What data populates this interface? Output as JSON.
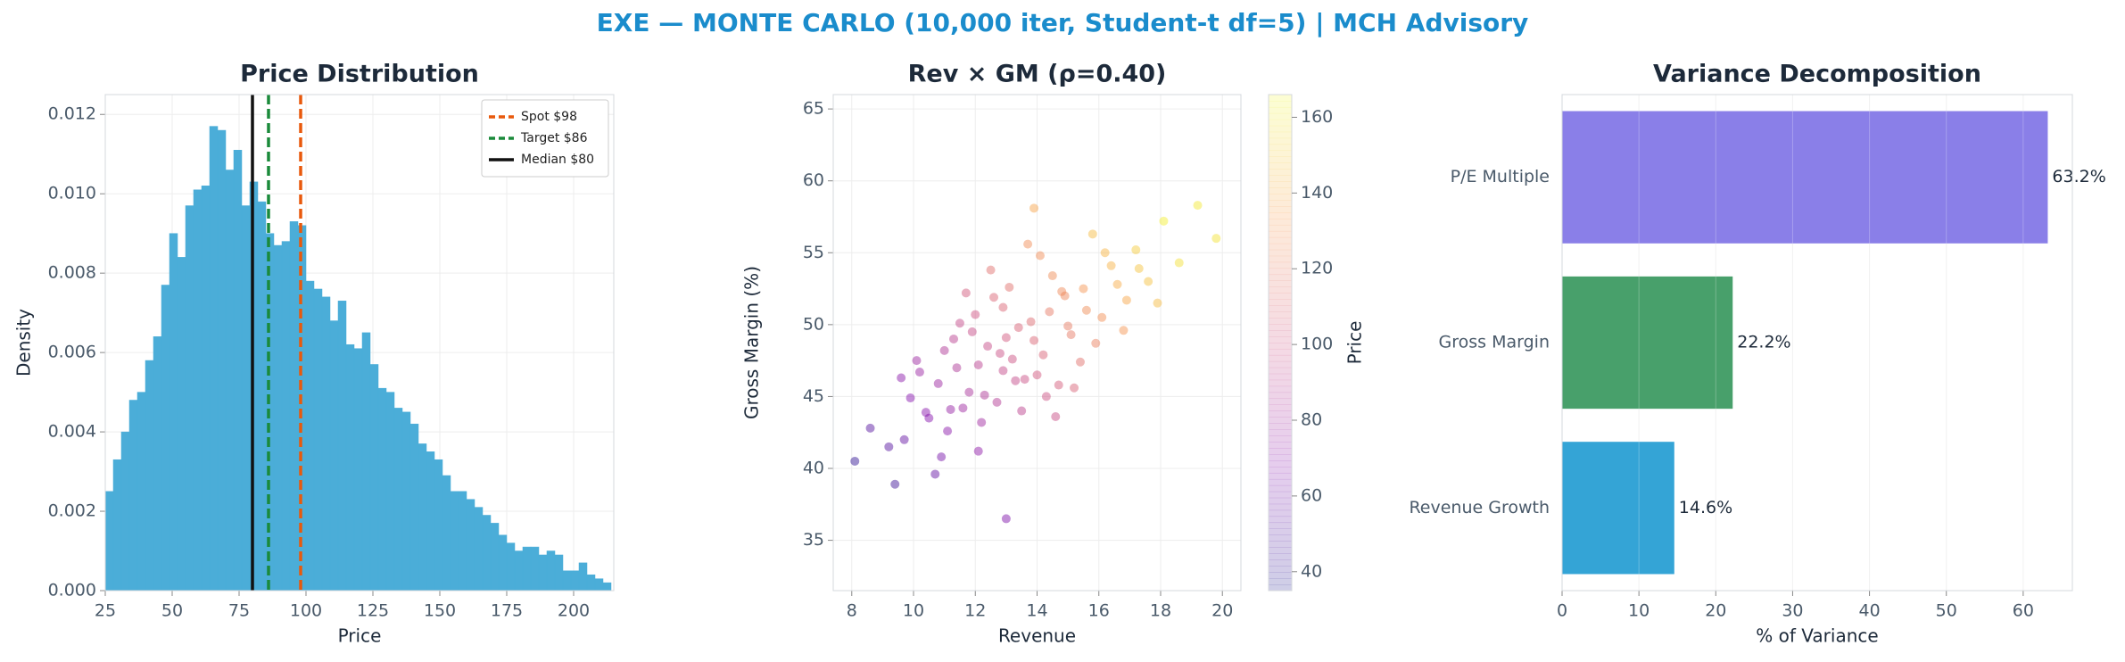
{
  "title": "EXE — MONTE CARLO (10,000 iter, Student-t df=5) | MCH Advisory",
  "chart_data": [
    {
      "type": "histogram",
      "title": "Price Distribution",
      "xlabel": "Price",
      "ylabel": "Density",
      "color": "#4badd8",
      "grid": true,
      "bins": [
        25,
        28,
        31,
        34,
        37,
        40,
        43,
        46,
        49,
        52,
        55,
        58,
        61,
        64,
        67,
        70,
        73,
        76,
        79,
        82,
        85,
        88,
        91,
        94,
        97,
        100,
        103,
        106,
        109,
        112,
        115,
        118,
        121,
        124,
        127,
        130,
        133,
        136,
        139,
        142,
        145,
        148,
        151,
        154,
        157,
        160,
        163,
        166,
        169,
        172,
        175,
        178,
        181,
        184,
        187,
        190,
        193,
        196,
        199,
        202,
        205,
        208,
        211,
        214
      ],
      "values": [
        0.0025,
        0.0033,
        0.004,
        0.0048,
        0.005,
        0.0058,
        0.0064,
        0.0077,
        0.009,
        0.0084,
        0.0097,
        0.0101,
        0.0102,
        0.0117,
        0.0116,
        0.0106,
        0.0111,
        0.0097,
        0.0103,
        0.0098,
        0.009,
        0.0087,
        0.0088,
        0.0093,
        0.0092,
        0.0078,
        0.0076,
        0.0074,
        0.0068,
        0.0073,
        0.0062,
        0.0061,
        0.0065,
        0.0057,
        0.0051,
        0.005,
        0.0046,
        0.0045,
        0.0042,
        0.0037,
        0.0035,
        0.0033,
        0.0029,
        0.0025,
        0.0025,
        0.0023,
        0.0021,
        0.0019,
        0.0017,
        0.0014,
        0.0012,
        0.001,
        0.0011,
        0.0011,
        0.0009,
        0.001,
        0.0009,
        0.0005,
        0.0005,
        0.0007,
        0.0004,
        0.0003,
        0.0002
      ],
      "xlim": [
        25,
        215
      ],
      "xticks": [
        25,
        50,
        75,
        100,
        125,
        150,
        175,
        200
      ],
      "ylim": [
        0,
        0.0125
      ],
      "yticks": [
        {
          "value": 0,
          "label": "0.000"
        },
        0.002,
        0.004,
        0.006,
        0.008,
        {
          "value": 0.01,
          "label": "0.010"
        },
        0.012
      ],
      "legend": "upper right",
      "vlines": [
        {
          "name": "Spot $98",
          "value": 98,
          "color": "#e8590c",
          "style": "dashed"
        },
        {
          "name": "Target $86",
          "value": 86,
          "color": "#1a8a3a",
          "style": "dashed"
        },
        {
          "name": "Median $80",
          "value": 80,
          "color": "#111111",
          "style": "solid"
        }
      ]
    },
    {
      "type": "scatter",
      "title": "Rev × GM (ρ=0.40)",
      "xlabel": "Revenue",
      "ylabel": "Gross Margin (%)",
      "grid": true,
      "x": [
        12.1,
        13.4,
        11.2,
        14.8,
        10.5,
        15.6,
        12.9,
        13.8,
        9.7,
        16.4,
        12.4,
        11.8,
        14.2,
        13.1,
        10.9,
        17.2,
        12.7,
        15.1,
        11.5,
        13.6,
        14.5,
        9.2,
        16.9,
        12.2,
        13.9,
        10.2,
        15.8,
        11.9,
        14.7,
        12.6,
        18.1,
        11.1,
        13.3,
        16.1,
        9.9,
        14.1,
        12.8,
        15.4,
        10.7,
        13.0,
        17.6,
        11.4,
        14.4,
        12.3,
        8.6,
        16.6,
        13.7,
        10.4,
        15.2,
        12.0,
        19.2,
        11.6,
        14.9,
        13.2,
        9.4,
        17.9,
        12.5,
        15.9,
        10.8,
        14.0,
        11.3,
        16.2,
        13.5,
        8.1,
        18.6,
        12.9,
        15.0,
        11.0,
        14.6,
        10.1,
        16.8,
        13.9,
        12.1,
        17.3,
        9.6,
        15.5,
        11.7,
        14.3,
        19.8,
        13.0
      ],
      "values": [
        47.2,
        49.8,
        44.1,
        52.3,
        43.5,
        51.0,
        46.8,
        50.2,
        42.0,
        54.1,
        48.5,
        45.3,
        47.9,
        52.6,
        40.8,
        55.2,
        44.6,
        49.3,
        50.1,
        46.2,
        53.4,
        41.5,
        51.7,
        43.2,
        48.9,
        46.7,
        56.3,
        49.5,
        45.8,
        51.9,
        57.2,
        42.6,
        46.1,
        50.5,
        44.9,
        54.8,
        48.0,
        47.4,
        39.6,
        49.1,
        53.0,
        47.0,
        50.9,
        45.1,
        42.8,
        52.8,
        55.6,
        43.9,
        45.6,
        50.7,
        58.3,
        44.2,
        52.0,
        47.6,
        38.9,
        51.5,
        53.8,
        48.7,
        45.9,
        46.5,
        49.0,
        55.0,
        44.0,
        40.5,
        54.3,
        51.2,
        49.9,
        48.2,
        43.6,
        47.5,
        49.6,
        58.1,
        41.2,
        53.9,
        46.3,
        52.5,
        52.2,
        45.0,
        56.0,
        36.5
      ],
      "color_values": [
        90,
        107,
        75,
        125,
        68,
        126,
        95,
        111,
        58,
        141,
        96,
        83,
        107,
        114,
        63,
        150,
        87,
        118,
        95,
        98,
        126,
        53,
        137,
        79,
        108,
        76,
        144,
        96,
        104,
        108,
        162,
        70,
        95,
        128,
        68,
        127,
        98,
        114,
        58,
        102,
        146,
        85,
        118,
        85,
        53,
        139,
        127,
        69,
        107,
        100,
        160,
        78,
        124,
        99,
        47,
        144,
        113,
        121,
        77,
        102,
        90,
        142,
        91,
        42,
        157,
        108,
        119,
        86,
        97,
        77,
        130,
        136,
        72,
        147,
        70,
        130,
        103,
        99,
        158,
        65
      ],
      "colormap": "plasma",
      "clim": [
        35,
        166
      ],
      "cticks": [
        40,
        60,
        80,
        100,
        120,
        140,
        160
      ],
      "colorbar_label": "Price",
      "xlim": [
        7.4,
        20.6
      ],
      "xticks": [
        8,
        10,
        12,
        14,
        16,
        18,
        20
      ],
      "ylim": [
        31.5,
        66
      ],
      "yticks": [
        35,
        40,
        45,
        50,
        55,
        60,
        65
      ]
    },
    {
      "type": "barh",
      "title": "Variance Decomposition",
      "xlabel": "% of Variance",
      "grid": true,
      "categories": [
        "Revenue Growth",
        "Gross Margin",
        "P/E Multiple"
      ],
      "values": [
        14.6,
        22.2,
        63.2
      ],
      "value_labels": [
        "14.6%",
        "22.2%",
        "63.2%"
      ],
      "colors": [
        "#34a4d6",
        "#48a06b",
        "#8a7fe8"
      ],
      "xlim": [
        0,
        66.4
      ],
      "xticks": [
        0,
        10,
        20,
        30,
        40,
        50,
        60
      ]
    }
  ]
}
